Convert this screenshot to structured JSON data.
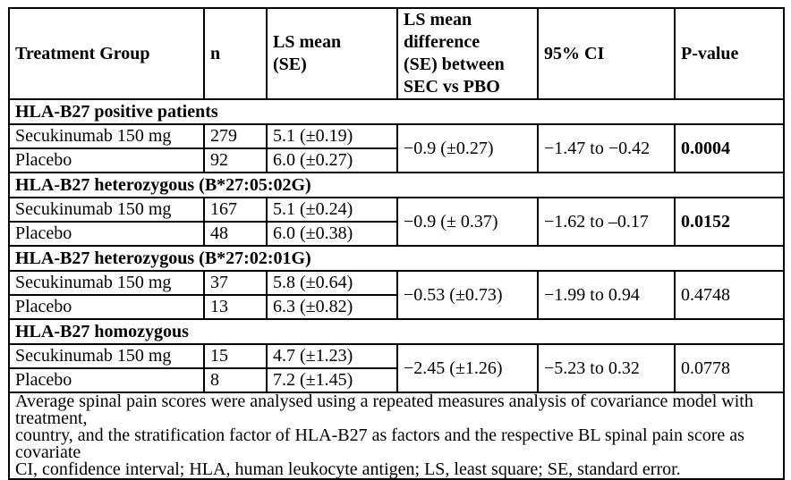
{
  "page": {
    "background": "#ffffff",
    "border_color": "#000000",
    "text_color": "#000000"
  },
  "table": {
    "columns": [
      {
        "lines": [
          "Treatment Group"
        ]
      },
      {
        "lines": [
          "n"
        ]
      },
      {
        "lines": [
          "LS mean",
          "(SE)"
        ]
      },
      {
        "lines": [
          "LS mean",
          "difference",
          "(SE) between",
          "SEC vs PBO"
        ]
      },
      {
        "lines": [
          "95% CI"
        ]
      },
      {
        "lines": [
          "P-value"
        ]
      }
    ],
    "sections": [
      {
        "header": "HLA-B27 positive patients",
        "rows": [
          {
            "group": "Secukinumab 150 mg",
            "n": "279",
            "ls_mean_se": "5.1 (±0.19)"
          },
          {
            "group": "Placebo",
            "n": "92",
            "ls_mean_se": "6.0 (±0.27)"
          }
        ],
        "ls_mean_difference_se": "−0.9 (±0.27)",
        "ci_95": "−1.47 to −0.42",
        "p_value": "0.0004",
        "p_value_bold": true
      },
      {
        "header": "HLA-B27 heterozygous (B*27:05:02G)",
        "rows": [
          {
            "group": "Secukinumab 150 mg",
            "n": "167",
            "ls_mean_se": "5.1 (±0.24)"
          },
          {
            "group": "Placebo",
            "n": "48",
            "ls_mean_se": "6.0 (±0.38)"
          }
        ],
        "ls_mean_difference_se": "−0.9 (± 0.37)",
        "ci_95": "−1.62 to –0.17",
        "p_value": "0.0152",
        "p_value_bold": true
      },
      {
        "header": "HLA-B27 heterozygous (B*27:02:01G)",
        "rows": [
          {
            "group": "Secukinumab 150 mg",
            "n": "37",
            "ls_mean_se": "5.8 (±0.64)"
          },
          {
            "group": "Placebo",
            "n": "13",
            "ls_mean_se": "6.3 (±0.82)"
          }
        ],
        "ls_mean_difference_se": "−0.53 (±0.73)",
        "ci_95": "−1.99 to 0.94",
        "p_value": "0.4748",
        "p_value_bold": false
      },
      {
        "header": "HLA-B27 homozygous",
        "rows": [
          {
            "group": "Secukinumab 150 mg",
            "n": "15",
            "ls_mean_se": "4.7 (±1.23)"
          },
          {
            "group": "Placebo",
            "n": "8",
            "ls_mean_se": "7.2 (±1.45)"
          }
        ],
        "ls_mean_difference_se": "−2.45 (±1.26)",
        "ci_95": "−5.23 to 0.32",
        "p_value": "0.0778",
        "p_value_bold": false
      }
    ],
    "footnote_lines": [
      "Average spinal pain scores were analysed using a repeated measures analysis of covariance model with treatment,",
      "country, and the stratification factor of HLA-B27 as factors and the respective BL spinal pain score as covariate",
      "CI, confidence interval; HLA, human leukocyte antigen; LS, least square; SE, standard error."
    ]
  }
}
